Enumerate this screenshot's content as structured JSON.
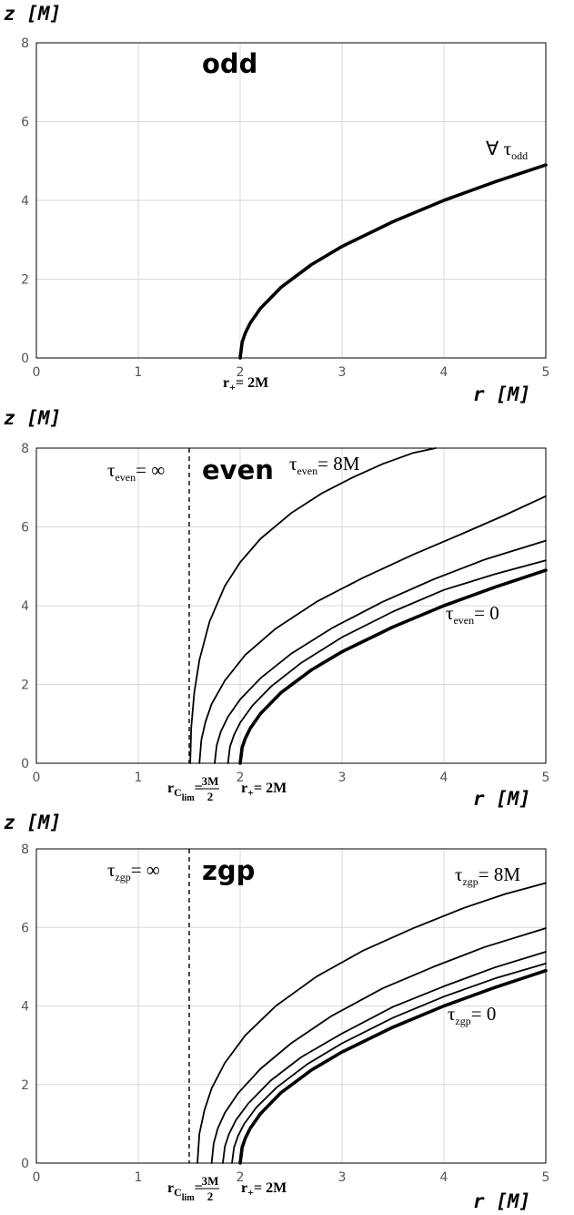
{
  "chart_data": [
    {
      "type": "line",
      "title": "odd",
      "xlabel": "r [M]",
      "ylabel": "z [M]",
      "xlim": [
        0,
        5
      ],
      "ylim": [
        0,
        8
      ],
      "xticks": [
        0,
        1,
        2,
        3,
        4,
        5
      ],
      "yticks": [
        0,
        2,
        4,
        6,
        8
      ],
      "grid": true,
      "series": [
        {
          "x": [
            2.0,
            2.02,
            2.05,
            2.1,
            2.2,
            2.4,
            2.7,
            3.0,
            3.5,
            4.0,
            4.5,
            5.0
          ],
          "y": [
            0.0,
            0.4,
            0.63,
            0.89,
            1.26,
            1.79,
            2.37,
            2.83,
            3.46,
            4.0,
            4.47,
            4.9
          ],
          "bold": true
        }
      ],
      "annotations": {
        "tau_label": {
          "prefix": "∀ τ",
          "sub": "odd"
        },
        "r_plus": {
          "main": "r",
          "sub": "+",
          "rest": "= 2M"
        }
      }
    },
    {
      "type": "line",
      "title": "even",
      "xlabel": "r [M]",
      "ylabel": "z [M]",
      "xlim": [
        0,
        5
      ],
      "ylim": [
        0,
        8
      ],
      "xticks": [
        0,
        1,
        2,
        3,
        4,
        5
      ],
      "yticks": [
        0,
        2,
        4,
        6,
        8
      ],
      "grid": true,
      "asymptote_x": 1.5,
      "series": [
        {
          "x": [
            1.51,
            1.52,
            1.55,
            1.6,
            1.7,
            1.85,
            2.0,
            2.2,
            2.5,
            2.8,
            3.1,
            3.4,
            3.7,
            3.92
          ],
          "y": [
            0.0,
            0.9,
            1.8,
            2.62,
            3.6,
            4.5,
            5.1,
            5.7,
            6.35,
            6.85,
            7.25,
            7.6,
            7.88,
            8.0
          ]
        },
        {
          "x": [
            1.6,
            1.62,
            1.66,
            1.72,
            1.85,
            2.05,
            2.35,
            2.75,
            3.2,
            3.7,
            4.2,
            4.6,
            5.0
          ],
          "y": [
            0.0,
            0.6,
            1.05,
            1.5,
            2.1,
            2.75,
            3.42,
            4.1,
            4.7,
            5.3,
            5.85,
            6.3,
            6.78
          ]
        },
        {
          "x": [
            1.75,
            1.77,
            1.81,
            1.88,
            2.0,
            2.2,
            2.5,
            2.9,
            3.4,
            3.9,
            4.4,
            5.0
          ],
          "y": [
            0.0,
            0.45,
            0.8,
            1.18,
            1.62,
            2.16,
            2.78,
            3.43,
            4.1,
            4.67,
            5.17,
            5.65
          ]
        },
        {
          "x": [
            1.88,
            1.9,
            1.94,
            2.0,
            2.12,
            2.3,
            2.6,
            3.0,
            3.5,
            4.0,
            4.5,
            5.0
          ],
          "y": [
            0.0,
            0.42,
            0.72,
            1.03,
            1.46,
            1.94,
            2.55,
            3.2,
            3.85,
            4.4,
            4.8,
            5.15
          ]
        },
        {
          "x": [
            2.0,
            2.02,
            2.05,
            2.1,
            2.2,
            2.4,
            2.7,
            3.0,
            3.5,
            4.0,
            4.5,
            5.0
          ],
          "y": [
            0.0,
            0.4,
            0.63,
            0.89,
            1.26,
            1.79,
            2.37,
            2.83,
            3.46,
            4.0,
            4.47,
            4.9
          ],
          "bold": true
        }
      ],
      "annotations": {
        "tau_inf": {
          "main": "τ",
          "sub": "even",
          "rest": "= ∞"
        },
        "tau_8M": {
          "main": "τ",
          "sub": "even",
          "rest": "= 8M"
        },
        "tau_0": {
          "main": "τ",
          "sub": "even",
          "rest": "= 0"
        },
        "r_c": {
          "main": "r",
          "sub": "C",
          "subsub": "lim",
          "rest": "=",
          "num": "3M",
          "den": "2"
        },
        "r_plus": {
          "main": "r",
          "sub": "+",
          "rest": "= 2M"
        }
      }
    },
    {
      "type": "line",
      "title": "zgp",
      "xlabel": "r [M]",
      "ylabel": "z [M]",
      "xlim": [
        0,
        5
      ],
      "ylim": [
        0,
        8
      ],
      "xticks": [
        0,
        1,
        2,
        3,
        4,
        5
      ],
      "yticks": [
        0,
        2,
        4,
        6,
        8
      ],
      "grid": true,
      "asymptote_x": 1.5,
      "series": [
        {
          "x": [
            1.58,
            1.6,
            1.65,
            1.72,
            1.85,
            2.05,
            2.35,
            2.75,
            3.2,
            3.7,
            4.2,
            4.6,
            5.0
          ],
          "y": [
            0.0,
            0.75,
            1.35,
            1.9,
            2.55,
            3.25,
            4.0,
            4.75,
            5.4,
            5.98,
            6.5,
            6.85,
            7.13
          ]
        },
        {
          "x": [
            1.72,
            1.74,
            1.78,
            1.85,
            1.98,
            2.2,
            2.5,
            2.9,
            3.4,
            3.9,
            4.4,
            5.0
          ],
          "y": [
            0.0,
            0.5,
            0.88,
            1.28,
            1.78,
            2.4,
            3.05,
            3.75,
            4.45,
            5.0,
            5.5,
            5.98
          ]
        },
        {
          "x": [
            1.83,
            1.85,
            1.89,
            1.96,
            2.08,
            2.3,
            2.6,
            3.0,
            3.5,
            4.0,
            4.5,
            5.0
          ],
          "y": [
            0.0,
            0.42,
            0.74,
            1.1,
            1.52,
            2.1,
            2.7,
            3.3,
            3.98,
            4.5,
            4.98,
            5.38
          ]
        },
        {
          "x": [
            1.92,
            1.94,
            1.98,
            2.04,
            2.16,
            2.36,
            2.66,
            3.0,
            3.5,
            4.0,
            4.5,
            5.0
          ],
          "y": [
            0.0,
            0.4,
            0.7,
            1.0,
            1.42,
            1.93,
            2.52,
            3.05,
            3.7,
            4.24,
            4.7,
            5.08
          ]
        },
        {
          "x": [
            2.0,
            2.02,
            2.05,
            2.1,
            2.2,
            2.4,
            2.7,
            3.0,
            3.5,
            4.0,
            4.5,
            5.0
          ],
          "y": [
            0.0,
            0.4,
            0.63,
            0.89,
            1.26,
            1.79,
            2.37,
            2.83,
            3.46,
            4.0,
            4.47,
            4.9
          ],
          "bold": true
        }
      ],
      "annotations": {
        "tau_inf": {
          "main": "τ",
          "sub": "zgp",
          "rest": "= ∞"
        },
        "tau_8M": {
          "main": "τ",
          "sub": "zgp",
          "rest": "= 8M"
        },
        "tau_0": {
          "main": "τ",
          "sub": "zgp",
          "rest": "= 0"
        },
        "r_c": {
          "main": "r",
          "sub": "C",
          "subsub": "lim",
          "rest": "=",
          "num": "3M",
          "den": "2"
        },
        "r_plus": {
          "main": "r",
          "sub": "+",
          "rest": "= 2M"
        }
      }
    }
  ]
}
